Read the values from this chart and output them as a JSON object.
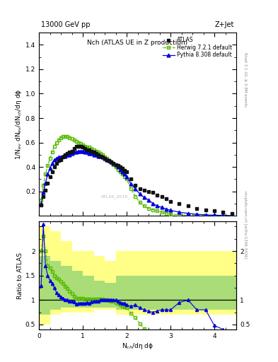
{
  "title_top": "13000 GeV pp",
  "title_right": "Z+Jet",
  "plot_title": "Nch (ATLAS UE in Z production)",
  "ylabel_main": "1/N$_{ev}$ dN$_{ev}$/dN$_{ch}$/dη dϕ",
  "ylabel_ratio": "Ratio to ATLAS",
  "xlabel": "N$_{ch}$/dη dϕ",
  "right_label_top": "Rivet 3.1.10, ≥ 2.8M events",
  "right_label_bot": "mcplots.cern.ch [arXiv:1306.3436]",
  "watermark": "ATLAS_2019_...",
  "atlas_x": [
    0.05,
    0.1,
    0.15,
    0.2,
    0.25,
    0.3,
    0.35,
    0.4,
    0.45,
    0.5,
    0.55,
    0.6,
    0.65,
    0.7,
    0.75,
    0.8,
    0.85,
    0.9,
    0.95,
    1.0,
    1.05,
    1.1,
    1.15,
    1.2,
    1.25,
    1.3,
    1.35,
    1.4,
    1.45,
    1.5,
    1.55,
    1.6,
    1.65,
    1.7,
    1.75,
    1.8,
    1.85,
    1.9,
    1.95,
    2.0,
    2.1,
    2.2,
    2.3,
    2.4,
    2.5,
    2.6,
    2.7,
    2.8,
    2.9,
    3.0,
    3.2,
    3.4,
    3.6,
    3.8,
    4.0,
    4.2,
    4.4
  ],
  "atlas_y": [
    0.09,
    0.16,
    0.21,
    0.27,
    0.32,
    0.36,
    0.4,
    0.43,
    0.45,
    0.46,
    0.48,
    0.5,
    0.51,
    0.52,
    0.53,
    0.55,
    0.57,
    0.57,
    0.57,
    0.56,
    0.55,
    0.54,
    0.54,
    0.53,
    0.52,
    0.51,
    0.5,
    0.49,
    0.48,
    0.47,
    0.46,
    0.45,
    0.44,
    0.43,
    0.42,
    0.41,
    0.4,
    0.39,
    0.37,
    0.36,
    0.3,
    0.25,
    0.22,
    0.21,
    0.2,
    0.19,
    0.17,
    0.16,
    0.14,
    0.12,
    0.1,
    0.08,
    0.06,
    0.05,
    0.04,
    0.03,
    0.02
  ],
  "herwig_x": [
    0.05,
    0.1,
    0.15,
    0.2,
    0.25,
    0.3,
    0.35,
    0.4,
    0.45,
    0.5,
    0.55,
    0.6,
    0.65,
    0.7,
    0.75,
    0.8,
    0.85,
    0.9,
    0.95,
    1.0,
    1.05,
    1.1,
    1.15,
    1.2,
    1.25,
    1.3,
    1.35,
    1.4,
    1.45,
    1.5,
    1.55,
    1.6,
    1.65,
    1.7,
    1.75,
    1.8,
    1.85,
    1.9,
    1.95,
    2.0,
    2.1,
    2.2,
    2.3,
    2.4,
    2.5,
    2.6,
    2.7,
    2.8,
    2.9,
    3.0,
    3.2,
    3.4,
    3.6,
    3.8,
    4.0,
    4.2,
    4.4
  ],
  "herwig_y": [
    0.13,
    0.25,
    0.34,
    0.41,
    0.47,
    0.52,
    0.57,
    0.6,
    0.62,
    0.64,
    0.65,
    0.65,
    0.65,
    0.64,
    0.63,
    0.62,
    0.61,
    0.6,
    0.59,
    0.58,
    0.57,
    0.56,
    0.56,
    0.55,
    0.54,
    0.53,
    0.52,
    0.51,
    0.5,
    0.48,
    0.47,
    0.45,
    0.44,
    0.42,
    0.4,
    0.38,
    0.36,
    0.34,
    0.32,
    0.3,
    0.22,
    0.16,
    0.11,
    0.08,
    0.06,
    0.05,
    0.04,
    0.03,
    0.02,
    0.015,
    0.008,
    0.005,
    0.003,
    0.002,
    0.001,
    0.001,
    0.001
  ],
  "pythia_x": [
    0.05,
    0.1,
    0.15,
    0.2,
    0.25,
    0.3,
    0.35,
    0.4,
    0.45,
    0.5,
    0.55,
    0.6,
    0.65,
    0.7,
    0.75,
    0.8,
    0.85,
    0.9,
    0.95,
    1.0,
    1.05,
    1.1,
    1.15,
    1.2,
    1.25,
    1.3,
    1.35,
    1.4,
    1.45,
    1.5,
    1.55,
    1.6,
    1.65,
    1.7,
    1.75,
    1.8,
    1.85,
    1.9,
    1.95,
    2.0,
    2.1,
    2.2,
    2.3,
    2.4,
    2.5,
    2.6,
    2.7,
    2.8,
    2.9,
    3.0,
    3.2,
    3.4,
    3.6,
    3.8,
    4.0,
    4.2,
    4.4
  ],
  "pythia_y": [
    0.1,
    0.19,
    0.27,
    0.34,
    0.39,
    0.43,
    0.46,
    0.47,
    0.48,
    0.48,
    0.49,
    0.49,
    0.5,
    0.5,
    0.51,
    0.52,
    0.52,
    0.53,
    0.53,
    0.53,
    0.52,
    0.52,
    0.51,
    0.51,
    0.5,
    0.5,
    0.49,
    0.49,
    0.48,
    0.47,
    0.46,
    0.45,
    0.44,
    0.43,
    0.42,
    0.4,
    0.38,
    0.36,
    0.34,
    0.32,
    0.26,
    0.22,
    0.18,
    0.15,
    0.13,
    0.1,
    0.08,
    0.07,
    0.055,
    0.045,
    0.03,
    0.02,
    0.012,
    0.008,
    0.005,
    0.003,
    0.002
  ],
  "ylim_main": [
    0.0,
    1.5
  ],
  "ylim_ratio": [
    0.4,
    2.6
  ],
  "xlim": [
    0.0,
    4.5
  ],
  "atlas_color": "#111111",
  "herwig_color": "#55bb00",
  "pythia_color": "#0000dd",
  "band_yellow": "#ffff88",
  "band_green": "#aadd77",
  "ratio_herwig_y": [
    2.0,
    2.3,
    2.0,
    1.7,
    1.65,
    1.58,
    1.5,
    1.45,
    1.42,
    1.38,
    1.34,
    1.28,
    1.24,
    1.18,
    1.13,
    1.08,
    1.03,
    1.04,
    1.03,
    1.03,
    1.02,
    1.02,
    1.02,
    1.02,
    1.02,
    1.02,
    1.02,
    1.02,
    1.02,
    1.0,
    1.0,
    0.99,
    0.98,
    0.97,
    0.95,
    0.93,
    0.9,
    0.88,
    0.86,
    0.84,
    0.73,
    0.64,
    0.52,
    0.42,
    0.32,
    0.28,
    0.24,
    0.2,
    0.17,
    0.13,
    0.1,
    0.06,
    0.05,
    0.04,
    0.03,
    0.03,
    0.05
  ],
  "ratio_pythia_y": [
    1.3,
    2.55,
    1.7,
    1.5,
    1.4,
    1.33,
    1.25,
    1.15,
    1.1,
    1.06,
    1.04,
    1.0,
    1.0,
    0.98,
    0.97,
    0.96,
    0.92,
    0.93,
    0.93,
    0.94,
    0.93,
    0.95,
    0.94,
    0.96,
    0.97,
    0.98,
    0.98,
    1.0,
    1.0,
    1.0,
    1.0,
    1.0,
    1.0,
    1.0,
    1.0,
    0.98,
    0.95,
    0.93,
    0.93,
    0.9,
    0.87,
    0.9,
    0.84,
    0.8,
    0.77,
    0.75,
    0.78,
    0.8,
    0.8,
    0.8,
    0.95,
    1.0,
    0.8,
    0.8,
    0.48,
    0.4,
    0.1
  ],
  "band_x_edges": [
    0.0,
    0.25,
    0.5,
    0.75,
    1.0,
    1.25,
    1.5,
    1.75,
    2.0,
    2.5,
    3.0,
    3.5,
    4.0,
    4.5
  ],
  "band_yellow_lo": [
    0.5,
    0.7,
    0.75,
    0.75,
    0.75,
    0.8,
    0.8,
    0.7,
    0.7,
    0.7,
    0.7,
    0.7,
    0.7,
    0.7
  ],
  "band_yellow_hi": [
    2.5,
    2.4,
    2.2,
    2.0,
    2.0,
    1.9,
    1.8,
    2.0,
    2.0,
    2.0,
    2.0,
    2.0,
    2.0,
    2.0
  ],
  "band_green_lo": [
    0.7,
    0.8,
    0.85,
    0.85,
    0.85,
    0.85,
    0.85,
    0.8,
    0.8,
    0.8,
    0.8,
    0.8,
    0.8,
    0.8
  ],
  "band_green_hi": [
    1.9,
    1.8,
    1.7,
    1.6,
    1.5,
    1.4,
    1.35,
    1.5,
    1.5,
    1.5,
    1.5,
    1.5,
    1.5,
    1.5
  ]
}
